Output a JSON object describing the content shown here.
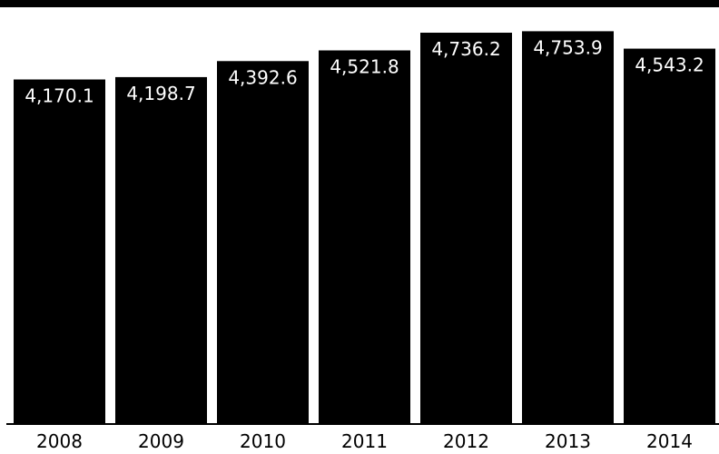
{
  "chart_data": {
    "type": "bar",
    "title": "",
    "xlabel": "",
    "ylabel": "",
    "categories": [
      "2008",
      "2009",
      "2010",
      "2011",
      "2012",
      "2013",
      "2014"
    ],
    "values": [
      4170.1,
      4198.7,
      4392.6,
      4521.8,
      4736.2,
      4753.9,
      4543.2
    ],
    "value_labels": [
      "4,170.1",
      "4,198.7",
      "4,392.6",
      "4,521.8",
      "4,736.2",
      "4,753.9",
      "4,543.2"
    ],
    "ylim": [
      0,
      5000
    ],
    "grid": false,
    "legend": "none",
    "colors": {
      "bar": "#000000",
      "value_label": "#ffffff",
      "axis": "#000000",
      "tick_label": "#000000",
      "top_band": "#000000"
    }
  }
}
